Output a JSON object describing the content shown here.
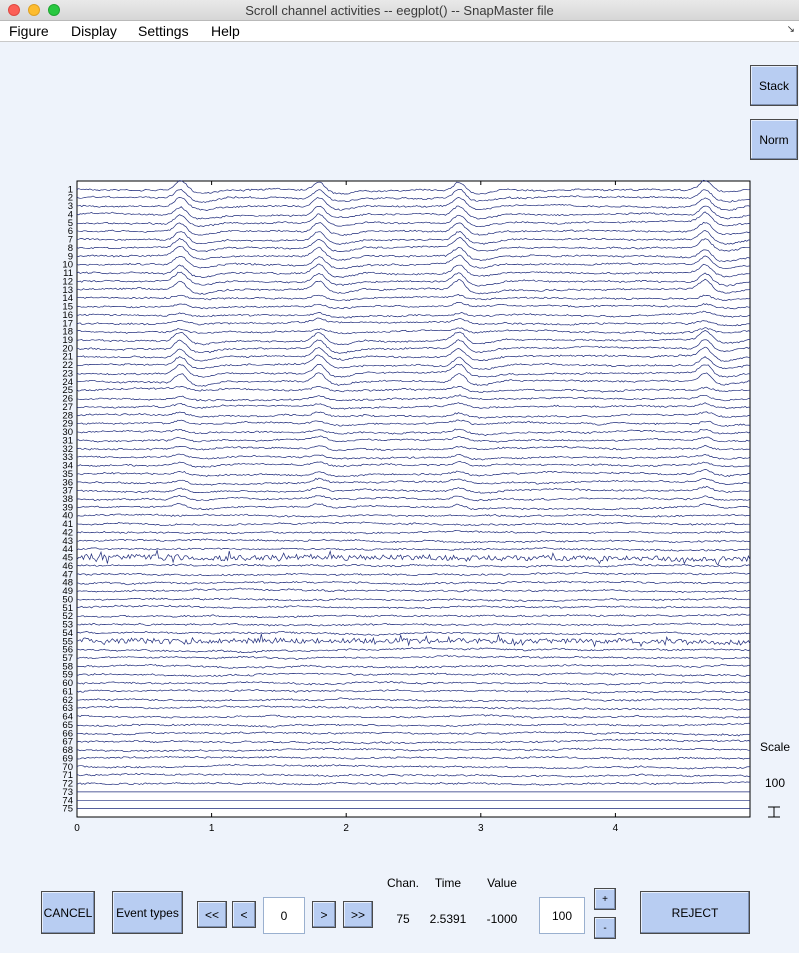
{
  "window": {
    "title": "Scroll channel activities -- eegplot() -- SnapMaster file"
  },
  "menu": [
    "Figure",
    "Display",
    "Settings",
    "Help"
  ],
  "buttons": {
    "stack": "Stack",
    "norm": "Norm",
    "cancel": "CANCEL",
    "event_types": "Event types",
    "first": "<<",
    "prev": "<",
    "next": ">",
    "last": ">>",
    "plus": "+",
    "minus": "-",
    "reject": "REJECT"
  },
  "window_position": "0",
  "scale": {
    "label": "Scale",
    "value": "100"
  },
  "spacing_value": "100",
  "readout": {
    "chan_label": "Chan.",
    "time_label": "Time",
    "value_label": "Value",
    "chan": "75",
    "time": "2.5391",
    "value": "-1000"
  },
  "colors": {
    "trace": "#1e2a7a",
    "button": "#b8cdf2",
    "background": "#eef3fb"
  },
  "chart_data": {
    "type": "line",
    "x_ticks": [
      "0",
      "1",
      "2",
      "3",
      "4"
    ],
    "xlim": [
      0,
      5
    ],
    "channel_labels": [
      "1",
      "2",
      "3",
      "4",
      "5",
      "6",
      "7",
      "8",
      "9",
      "10",
      "11",
      "12",
      "13",
      "14",
      "15",
      "16",
      "17",
      "18",
      "19",
      "20",
      "21",
      "22",
      "23",
      "24",
      "25",
      "26",
      "27",
      "28",
      "29",
      "30",
      "31",
      "32",
      "33",
      "34",
      "35",
      "36",
      "37",
      "38",
      "39",
      "40",
      "41",
      "42",
      "43",
      "44",
      "45",
      "46",
      "47",
      "48",
      "49",
      "50",
      "51",
      "52",
      "53",
      "54",
      "55",
      "56",
      "57",
      "58",
      "59",
      "60",
      "61",
      "62",
      "63",
      "64",
      "65",
      "66",
      "67",
      "68",
      "69",
      "70",
      "71",
      "72",
      "73",
      "74",
      "75"
    ],
    "events_at": [
      0.75,
      1.78,
      2.82,
      4.65
    ],
    "noisy_channels": [
      45,
      55
    ]
  }
}
